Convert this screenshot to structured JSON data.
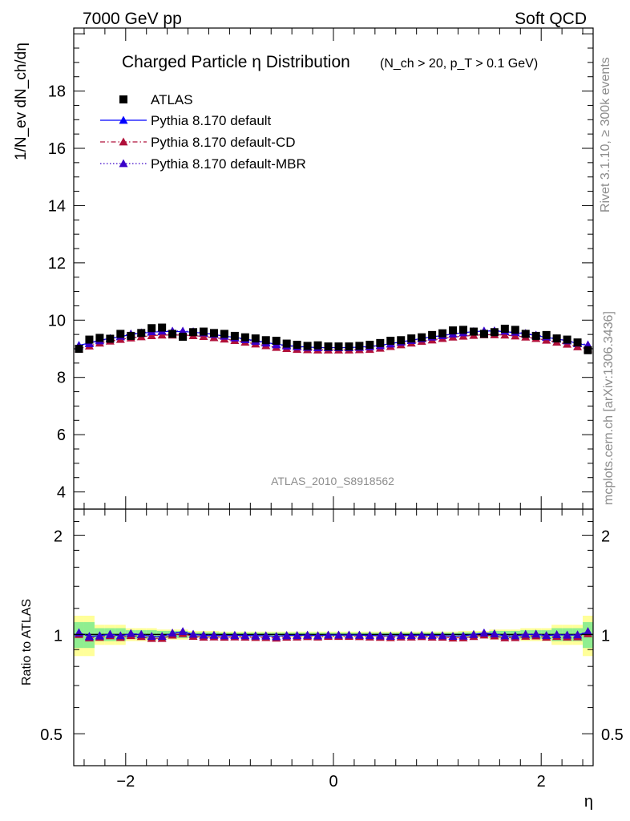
{
  "header": {
    "left": "7000 GeV pp",
    "right": "Soft QCD"
  },
  "side_labels": {
    "rivet": "Rivet 3.1.10, ≥ 300k events",
    "mcplots": "mcplots.cern.ch [arXiv:1306.3436]"
  },
  "watermark": "ATLAS_2010_S8918562",
  "chart_data": [
    {
      "type": "scatter",
      "title": "Charged Particle η Distribution",
      "subtitle": "(N_ch > 20, p_T > 0.1 GeV)",
      "ylabel": "1/N_ev dN_ch/dη",
      "xlim": [
        -2.5,
        2.5
      ],
      "ylim": [
        3.4,
        20.2
      ],
      "yticks": [
        4,
        6,
        8,
        10,
        12,
        14,
        16,
        18
      ],
      "legend_position": "top-left",
      "x": [
        -2.45,
        -2.35,
        -2.25,
        -2.15,
        -2.05,
        -1.95,
        -1.85,
        -1.75,
        -1.65,
        -1.55,
        -1.45,
        -1.35,
        -1.25,
        -1.15,
        -1.05,
        -0.95,
        -0.85,
        -0.75,
        -0.65,
        -0.55,
        -0.45,
        -0.35,
        -0.25,
        -0.15,
        -0.05,
        0.05,
        0.15,
        0.25,
        0.35,
        0.45,
        0.55,
        0.65,
        0.75,
        0.85,
        0.95,
        1.05,
        1.15,
        1.25,
        1.35,
        1.45,
        1.55,
        1.65,
        1.75,
        1.85,
        1.95,
        2.05,
        2.15,
        2.25,
        2.35,
        2.45
      ],
      "series": [
        {
          "name": "ATLAS",
          "marker": "square",
          "color": "#000000",
          "values": [
            9.0,
            9.32,
            9.38,
            9.35,
            9.52,
            9.45,
            9.55,
            9.72,
            9.74,
            9.52,
            9.42,
            9.58,
            9.6,
            9.55,
            9.52,
            9.45,
            9.4,
            9.36,
            9.3,
            9.28,
            9.18,
            9.14,
            9.1,
            9.12,
            9.08,
            9.08,
            9.08,
            9.1,
            9.14,
            9.2,
            9.28,
            9.3,
            9.36,
            9.4,
            9.48,
            9.54,
            9.64,
            9.66,
            9.6,
            9.52,
            9.58,
            9.7,
            9.66,
            9.52,
            9.45,
            9.48,
            9.36,
            9.32,
            9.22,
            8.95
          ]
        },
        {
          "name": "Pythia 8.170 default",
          "marker": "triangle",
          "line": "solid",
          "color": "#0000ff",
          "values": [
            9.12,
            9.2,
            9.3,
            9.36,
            9.42,
            9.5,
            9.54,
            9.58,
            9.6,
            9.6,
            9.6,
            9.58,
            9.54,
            9.5,
            9.44,
            9.4,
            9.34,
            9.28,
            9.22,
            9.16,
            9.12,
            9.08,
            9.06,
            9.04,
            9.04,
            9.04,
            9.04,
            9.06,
            9.08,
            9.12,
            9.18,
            9.24,
            9.3,
            9.36,
            9.42,
            9.46,
            9.52,
            9.56,
            9.6,
            9.62,
            9.62,
            9.6,
            9.56,
            9.52,
            9.46,
            9.4,
            9.34,
            9.28,
            9.18,
            9.12
          ]
        },
        {
          "name": "Pythia 8.170 default-CD",
          "marker": "triangle",
          "line": "dash-dot",
          "color": "#b0103a",
          "values": [
            9.0,
            9.1,
            9.2,
            9.27,
            9.33,
            9.38,
            9.42,
            9.46,
            9.48,
            9.48,
            9.48,
            9.46,
            9.43,
            9.39,
            9.34,
            9.29,
            9.23,
            9.17,
            9.11,
            9.05,
            9.01,
            8.98,
            8.97,
            8.96,
            8.96,
            8.96,
            8.96,
            8.97,
            8.98,
            9.02,
            9.08,
            9.14,
            9.2,
            9.26,
            9.31,
            9.36,
            9.41,
            9.44,
            9.47,
            9.49,
            9.49,
            9.48,
            9.45,
            9.41,
            9.36,
            9.3,
            9.23,
            9.16,
            9.07,
            9.0
          ]
        },
        {
          "name": "Pythia 8.170 default-MBR",
          "marker": "triangle",
          "line": "dotted",
          "color": "#3a00c8",
          "values": [
            9.1,
            9.18,
            9.28,
            9.36,
            9.44,
            9.52,
            9.56,
            9.6,
            9.62,
            9.62,
            9.62,
            9.6,
            9.56,
            9.5,
            9.44,
            9.38,
            9.32,
            9.26,
            9.2,
            9.14,
            9.1,
            9.07,
            9.05,
            9.04,
            9.04,
            9.04,
            9.04,
            9.05,
            9.07,
            9.11,
            9.17,
            9.23,
            9.29,
            9.35,
            9.41,
            9.46,
            9.52,
            9.56,
            9.6,
            9.62,
            9.63,
            9.62,
            9.58,
            9.54,
            9.48,
            9.42,
            9.35,
            9.28,
            9.2,
            9.14
          ]
        }
      ]
    },
    {
      "type": "scatter",
      "ylabel": "Ratio to ATLAS",
      "xlabel": "η",
      "xlim": [
        -2.5,
        2.5
      ],
      "ylim": [
        0.4,
        2.4
      ],
      "ylog": true,
      "yticks": [
        0.5,
        1,
        2
      ],
      "xticks": [
        -2,
        0,
        2
      ],
      "bands": {
        "inner_color": "#90ee90",
        "outer_color": "#ffff99",
        "inner_halfwidth": [
          0.09,
          0.09,
          0.045,
          0.045,
          0.045,
          0.03,
          0.03,
          0.03,
          0.025,
          0.025,
          0.025,
          0.015,
          0.015,
          0.015,
          0.012,
          0.012,
          0.012,
          0.012,
          0.012,
          0.012,
          0.012,
          0.012,
          0.012,
          0.012,
          0.012,
          0.012,
          0.012,
          0.012,
          0.012,
          0.012,
          0.012,
          0.012,
          0.012,
          0.012,
          0.012,
          0.012,
          0.012,
          0.015,
          0.015,
          0.015,
          0.025,
          0.025,
          0.025,
          0.03,
          0.03,
          0.03,
          0.045,
          0.045,
          0.045,
          0.09,
          0.09
        ],
        "outer_halfwidth": [
          0.14,
          0.14,
          0.07,
          0.07,
          0.07,
          0.045,
          0.045,
          0.045,
          0.035,
          0.035,
          0.035,
          0.025,
          0.025,
          0.025,
          0.02,
          0.02,
          0.02,
          0.02,
          0.02,
          0.02,
          0.02,
          0.02,
          0.02,
          0.02,
          0.02,
          0.02,
          0.02,
          0.02,
          0.02,
          0.02,
          0.02,
          0.02,
          0.02,
          0.02,
          0.02,
          0.02,
          0.02,
          0.025,
          0.025,
          0.025,
          0.035,
          0.035,
          0.035,
          0.045,
          0.045,
          0.045,
          0.07,
          0.07,
          0.07,
          0.14,
          0.14
        ]
      }
    }
  ]
}
